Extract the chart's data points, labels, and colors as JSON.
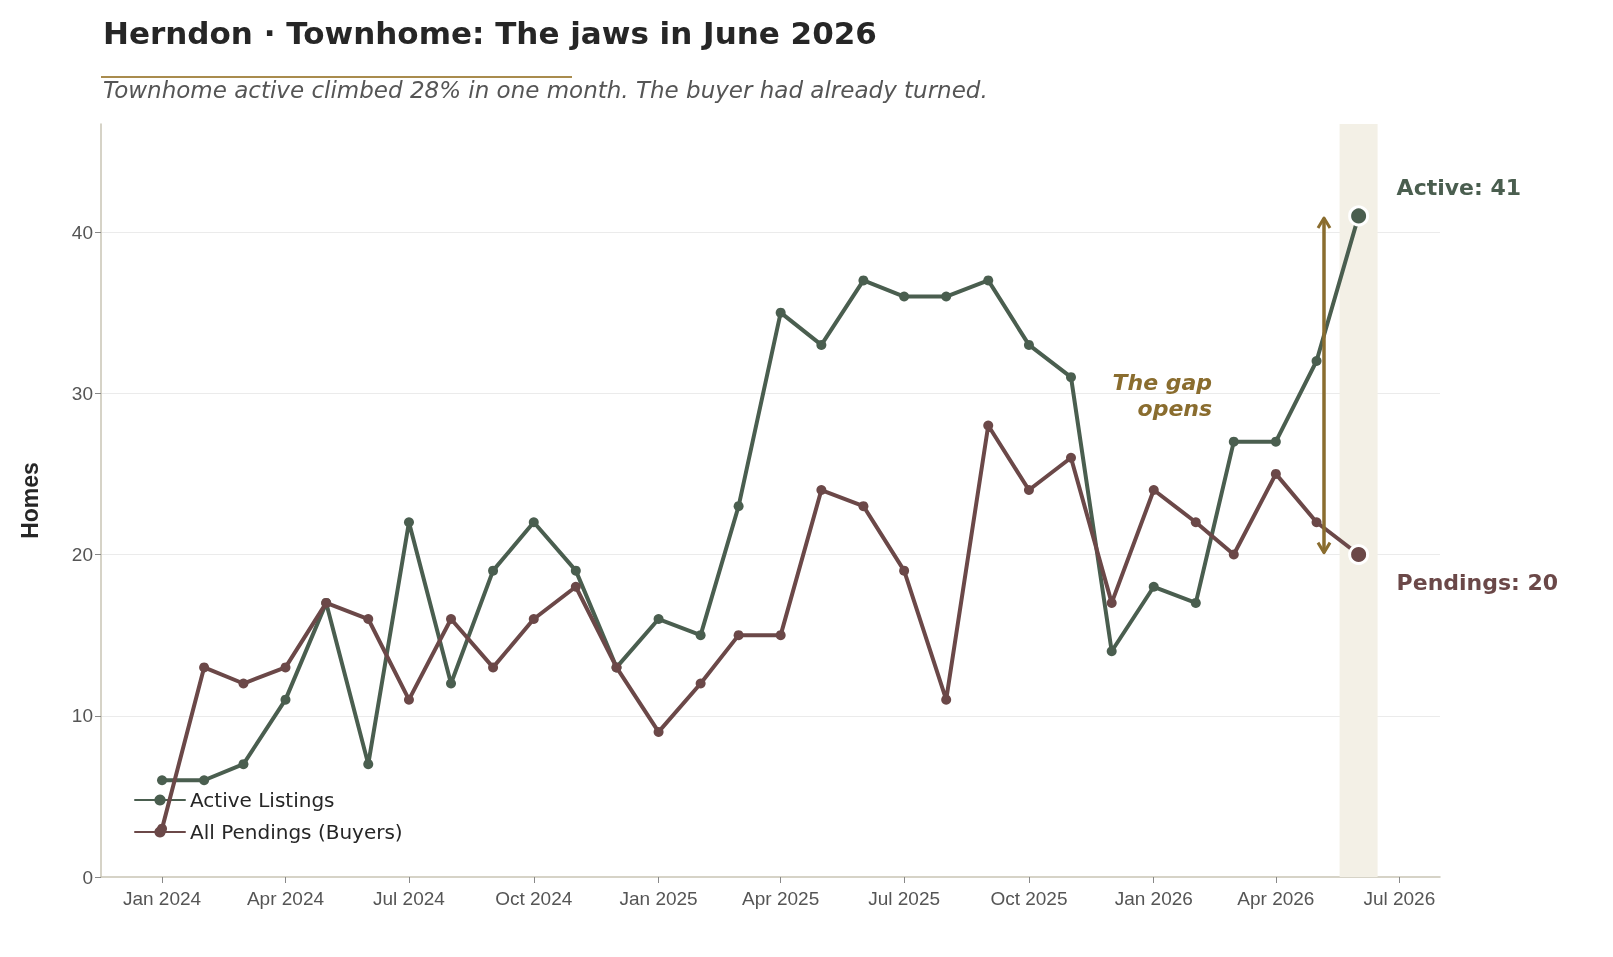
{
  "chart_data": {
    "type": "line",
    "title": "Herndon · Townhome: The jaws in June 2026",
    "subtitle": "Townhome active climbed 28% in one month. The buyer had already turned.",
    "ylabel": "Homes",
    "x": [
      "2024-01",
      "2024-02",
      "2024-03",
      "2024-04",
      "2024-05",
      "2024-06",
      "2024-07",
      "2024-08",
      "2024-09",
      "2024-10",
      "2024-11",
      "2024-12",
      "2025-01",
      "2025-02",
      "2025-03",
      "2025-04",
      "2025-05",
      "2025-06",
      "2025-07",
      "2025-08",
      "2025-09",
      "2025-10",
      "2025-11",
      "2025-12",
      "2026-01",
      "2026-02",
      "2026-03",
      "2026-04",
      "2026-05",
      "2026-06"
    ],
    "series": [
      {
        "name": "Active Listings",
        "color": "#4a5e4f",
        "values": [
          6,
          6,
          7,
          11,
          17,
          7,
          22,
          12,
          19,
          22,
          19,
          13,
          16,
          15,
          23,
          35,
          33,
          37,
          36,
          36,
          37,
          33,
          31,
          14,
          18,
          17,
          27,
          27,
          32,
          41
        ]
      },
      {
        "name": "All Pendings (Buyers)",
        "color": "#6b4848",
        "values": [
          3,
          13,
          12,
          13,
          17,
          16,
          11,
          16,
          13,
          16,
          18,
          13,
          9,
          12,
          15,
          15,
          24,
          23,
          19,
          11,
          28,
          24,
          26,
          17,
          24,
          22,
          20,
          25,
          22,
          20
        ]
      }
    ],
    "xlim": [
      "2023-11-17",
      "2026-07-31"
    ],
    "xticks": [
      {
        "value": "2024-01",
        "label": "Jan 2024"
      },
      {
        "value": "2024-04",
        "label": "Apr 2024"
      },
      {
        "value": "2024-07",
        "label": "Jul 2024"
      },
      {
        "value": "2024-10",
        "label": "Oct 2024"
      },
      {
        "value": "2025-01",
        "label": "Jan 2025"
      },
      {
        "value": "2025-04",
        "label": "Apr 2025"
      },
      {
        "value": "2025-07",
        "label": "Jul 2025"
      },
      {
        "value": "2025-10",
        "label": "Oct 2025"
      },
      {
        "value": "2026-01",
        "label": "Jan 2026"
      },
      {
        "value": "2026-04",
        "label": "Apr 2026"
      },
      {
        "value": "2026-07",
        "label": "Jul 2026"
      }
    ],
    "ylim": [
      0,
      46.7
    ],
    "yticks": [
      0,
      10,
      20,
      30,
      40
    ],
    "bands": [
      {
        "axis": "x",
        "from": "2026-05-18",
        "to": "2026-06-15",
        "color": "#f3f0e6"
      }
    ],
    "annotations": [
      {
        "text": "Active: 41",
        "x": "2026-06",
        "y": 41
      },
      {
        "text": "Pendings: 20",
        "x": "2026-06",
        "y": 20
      },
      "The gap opens"
    ],
    "grid": "y",
    "legend": "bottom left",
    "marker": "circle",
    "line_style": "solid"
  }
}
